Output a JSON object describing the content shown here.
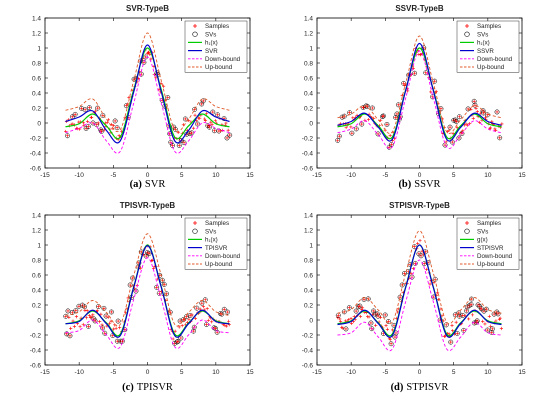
{
  "colors": {
    "samples": "#ff0000",
    "svs": "#000000",
    "h": "#00cc00",
    "fit": "#0000cc",
    "down": "#ff00ff",
    "up": "#e05a2a",
    "frame": "#000000"
  },
  "chart_data": [
    {
      "type": "scatter",
      "title": "SVR-TypeB",
      "caption_letter": "(a)",
      "caption_name": "SVR",
      "xlim": [
        -15,
        15
      ],
      "ylim": [
        -0.6,
        1.4
      ],
      "xticks": [
        -15,
        -10,
        -5,
        0,
        5,
        10,
        15
      ],
      "yticks": [
        -0.6,
        -0.4,
        -0.2,
        0,
        0.2,
        0.4,
        0.6,
        0.8,
        1,
        1.2,
        1.4
      ],
      "legend_position": "top-right",
      "legend": [
        {
          "label": "Samples",
          "style": "samples"
        },
        {
          "label": "SVs",
          "style": "svs"
        },
        {
          "label": "h₁(x)",
          "style": "h"
        },
        {
          "label": "SVR",
          "style": "fit"
        },
        {
          "label": "Down-bound",
          "style": "down"
        },
        {
          "label": "Up-bound",
          "style": "up"
        }
      ],
      "sample_x_range": [
        -12,
        12
      ],
      "curves": {
        "h": {
          "x": [
            -12,
            -10,
            -8,
            -6,
            -4,
            -2,
            0,
            2,
            4,
            6,
            8,
            10,
            12
          ],
          "y": [
            -0.05,
            -0.01,
            0.12,
            -0.04,
            -0.19,
            0.45,
            1.0,
            0.45,
            -0.19,
            -0.04,
            0.12,
            -0.01,
            -0.05
          ]
        },
        "fit": {
          "x": [
            -12,
            -10,
            -8,
            -6,
            -4,
            -2,
            0,
            2,
            4,
            6,
            8,
            10,
            12
          ],
          "y": [
            0.02,
            0.08,
            0.16,
            -0.1,
            -0.24,
            0.42,
            1.04,
            0.42,
            -0.24,
            -0.1,
            0.16,
            0.08,
            0.02
          ]
        },
        "down": {
          "x": [
            -12,
            -10,
            -8,
            -6,
            -4,
            -2,
            0,
            2,
            4,
            6,
            8,
            10,
            12
          ],
          "y": [
            -0.13,
            -0.07,
            0.0,
            -0.24,
            -0.38,
            0.27,
            0.88,
            0.27,
            -0.38,
            -0.24,
            0.0,
            -0.07,
            -0.13
          ]
        },
        "up": {
          "x": [
            -12,
            -10,
            -8,
            -6,
            -4,
            -2,
            0,
            2,
            4,
            6,
            8,
            10,
            12
          ],
          "y": [
            0.17,
            0.22,
            0.32,
            0.05,
            -0.09,
            0.57,
            1.2,
            0.57,
            -0.09,
            0.05,
            0.32,
            0.22,
            0.17
          ]
        }
      }
    },
    {
      "type": "scatter",
      "title": "SSVR-TypeB",
      "caption_letter": "(b)",
      "caption_name": "SSVR",
      "xlim": [
        -15,
        15
      ],
      "ylim": [
        -0.6,
        1.4
      ],
      "xticks": [
        -15,
        -10,
        -5,
        0,
        5,
        10,
        15
      ],
      "yticks": [
        -0.6,
        -0.4,
        -0.2,
        0,
        0.2,
        0.4,
        0.6,
        0.8,
        1,
        1.2,
        1.4
      ],
      "legend_position": "top-right",
      "legend": [
        {
          "label": "Samples",
          "style": "samples"
        },
        {
          "label": "SVs",
          "style": "svs"
        },
        {
          "label": "h₁(x)",
          "style": "h"
        },
        {
          "label": "SSVR",
          "style": "fit"
        },
        {
          "label": "Down-bound",
          "style": "down"
        },
        {
          "label": "Up-bound",
          "style": "up"
        }
      ],
      "sample_x_range": [
        -12,
        12
      ],
      "curves": {
        "h": {
          "x": [
            -12,
            -10,
            -8,
            -6,
            -4,
            -2,
            0,
            2,
            4,
            6,
            8,
            10,
            12
          ],
          "y": [
            -0.05,
            -0.01,
            0.12,
            -0.04,
            -0.19,
            0.45,
            1.0,
            0.45,
            -0.19,
            -0.04,
            0.12,
            -0.01,
            -0.05
          ]
        },
        "fit": {
          "x": [
            -12,
            -10,
            -8,
            -6,
            -4,
            -2,
            0,
            2,
            4,
            6,
            8,
            10,
            12
          ],
          "y": [
            -0.03,
            0.02,
            0.13,
            -0.06,
            -0.22,
            0.44,
            1.06,
            0.44,
            -0.22,
            -0.06,
            0.13,
            0.02,
            -0.03
          ]
        },
        "down": {
          "x": [
            -12,
            -10,
            -8,
            -6,
            -4,
            -2,
            0,
            2,
            4,
            6,
            8,
            10,
            12
          ],
          "y": [
            -0.13,
            -0.08,
            0.03,
            -0.16,
            -0.32,
            0.34,
            0.96,
            0.34,
            -0.32,
            -0.16,
            0.03,
            -0.08,
            -0.13
          ]
        },
        "up": {
          "x": [
            -12,
            -10,
            -8,
            -6,
            -4,
            -2,
            0,
            2,
            4,
            6,
            8,
            10,
            12
          ],
          "y": [
            0.07,
            0.12,
            0.23,
            0.04,
            -0.12,
            0.54,
            1.16,
            0.54,
            -0.12,
            0.04,
            0.23,
            0.12,
            0.07
          ]
        }
      }
    },
    {
      "type": "scatter",
      "title": "TPISVR-TypeB",
      "caption_letter": "(c)",
      "caption_name": "TPISVR",
      "xlim": [
        -15,
        15
      ],
      "ylim": [
        -0.6,
        1.4
      ],
      "xticks": [
        -15,
        -10,
        -5,
        0,
        5,
        10,
        15
      ],
      "yticks": [
        -0.6,
        -0.4,
        -0.2,
        0,
        0.2,
        0.4,
        0.6,
        0.8,
        1,
        1.2,
        1.4
      ],
      "legend_position": "top-right",
      "legend": [
        {
          "label": "Samples",
          "style": "samples"
        },
        {
          "label": "SVs",
          "style": "svs"
        },
        {
          "label": "h₁(x)",
          "style": "h"
        },
        {
          "label": "TPISVR",
          "style": "fit"
        },
        {
          "label": "Down-bound",
          "style": "down"
        },
        {
          "label": "Up-bound",
          "style": "up"
        }
      ],
      "sample_x_range": [
        -12,
        12
      ],
      "curves": {
        "h": {
          "x": [
            -12,
            -10,
            -8,
            -6,
            -4,
            -2,
            0,
            2,
            4,
            6,
            8,
            10,
            12
          ],
          "y": [
            -0.05,
            -0.01,
            0.12,
            -0.04,
            -0.19,
            0.45,
            1.0,
            0.45,
            -0.19,
            -0.04,
            0.12,
            -0.01,
            -0.05
          ]
        },
        "fit": {
          "x": [
            -12,
            -10,
            -8,
            -6,
            -4,
            -2,
            0,
            2,
            4,
            6,
            8,
            10,
            12
          ],
          "y": [
            -0.05,
            -0.02,
            0.13,
            -0.05,
            -0.21,
            0.44,
            0.99,
            0.44,
            -0.21,
            -0.05,
            0.13,
            -0.02,
            -0.05
          ]
        },
        "down": {
          "x": [
            -12,
            -10,
            -8,
            -6,
            -4,
            -2,
            0,
            2,
            4,
            6,
            8,
            10,
            12
          ],
          "y": [
            -0.17,
            -0.14,
            0.0,
            -0.2,
            -0.36,
            0.28,
            0.83,
            0.28,
            -0.36,
            -0.2,
            0.0,
            -0.14,
            -0.17
          ]
        },
        "up": {
          "x": [
            -12,
            -10,
            -8,
            -6,
            -4,
            -2,
            0,
            2,
            4,
            6,
            8,
            10,
            12
          ],
          "y": [
            0.06,
            0.11,
            0.26,
            0.1,
            -0.06,
            0.6,
            1.15,
            0.6,
            -0.06,
            0.1,
            0.26,
            0.11,
            0.06
          ]
        }
      }
    },
    {
      "type": "scatter",
      "title": "STPISVR-TypeB",
      "caption_letter": "(d)",
      "caption_name": "STPISVR",
      "xlim": [
        -15,
        15
      ],
      "ylim": [
        -0.6,
        1.4
      ],
      "xticks": [
        -15,
        -10,
        -5,
        0,
        5,
        10,
        15
      ],
      "yticks": [
        -0.6,
        -0.4,
        -0.2,
        0,
        0.2,
        0.4,
        0.6,
        0.8,
        1,
        1.2,
        1.4
      ],
      "legend_position": "top-right",
      "legend": [
        {
          "label": "Samples",
          "style": "samples"
        },
        {
          "label": "SVs",
          "style": "svs"
        },
        {
          "label": "g(x)",
          "style": "h"
        },
        {
          "label": "STPISVR",
          "style": "fit"
        },
        {
          "label": "Down-bound",
          "style": "down"
        },
        {
          "label": "Up-bound",
          "style": "up"
        }
      ],
      "sample_x_range": [
        -12,
        12
      ],
      "curves": {
        "h": {
          "x": [
            -12,
            -10,
            -8,
            -6,
            -4,
            -2,
            0,
            2,
            4,
            6,
            8,
            10,
            12
          ],
          "y": [
            -0.05,
            -0.01,
            0.12,
            -0.04,
            -0.19,
            0.45,
            1.0,
            0.45,
            -0.19,
            -0.04,
            0.12,
            -0.01,
            -0.05
          ]
        },
        "fit": {
          "x": [
            -12,
            -10,
            -8,
            -6,
            -4,
            -2,
            0,
            2,
            4,
            6,
            8,
            10,
            12
          ],
          "y": [
            -0.06,
            -0.02,
            0.13,
            -0.05,
            -0.21,
            0.44,
            1.0,
            0.44,
            -0.21,
            -0.05,
            0.13,
            -0.02,
            -0.06
          ]
        },
        "down": {
          "x": [
            -12,
            -10,
            -8,
            -6,
            -4,
            -2,
            0,
            2,
            4,
            6,
            8,
            10,
            12
          ],
          "y": [
            -0.2,
            -0.17,
            -0.03,
            -0.23,
            -0.39,
            0.25,
            0.8,
            0.25,
            -0.39,
            -0.23,
            -0.03,
            -0.17,
            -0.2
          ]
        },
        "up": {
          "x": [
            -12,
            -10,
            -8,
            -6,
            -4,
            -2,
            0,
            2,
            4,
            6,
            8,
            10,
            12
          ],
          "y": [
            0.09,
            0.14,
            0.3,
            0.13,
            -0.03,
            0.63,
            1.19,
            0.63,
            -0.03,
            0.13,
            0.3,
            0.14,
            0.09
          ]
        }
      }
    }
  ]
}
